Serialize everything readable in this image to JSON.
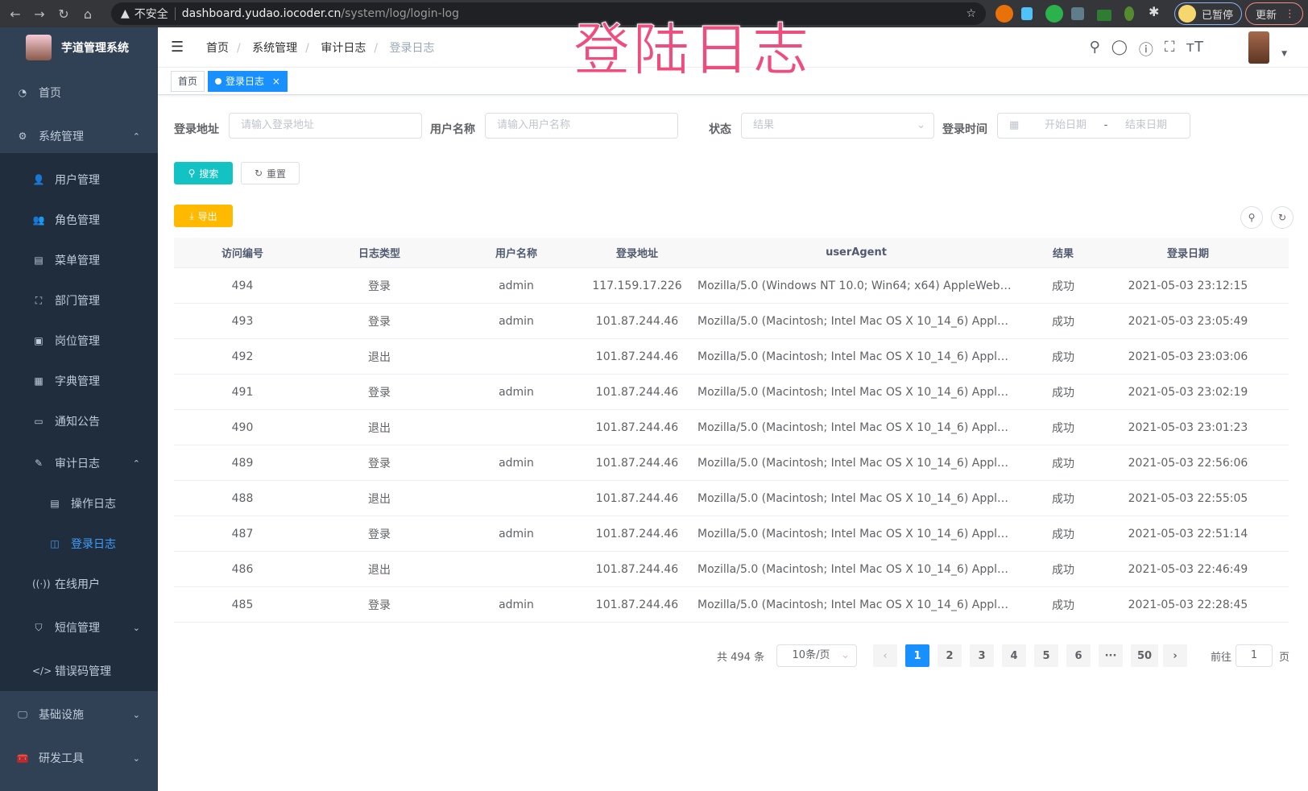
{
  "browser": {
    "warning": "不安全",
    "host": "dashboard.yudao.iocoder.cn",
    "path": "/system/log/login-log",
    "profile_label": "已暂停",
    "update_label": "更新"
  },
  "overlay_title": "登陆日志",
  "sidebar": {
    "title": "芋道管理系统",
    "items": [
      {
        "label": "首页",
        "icon": "dashboard-icon",
        "glyph": "◔",
        "level": 0,
        "top": 56
      },
      {
        "label": "系统管理",
        "icon": "gear-icon",
        "glyph": "⚙",
        "level": 0,
        "top": 110,
        "arrow": "⌃"
      },
      {
        "label": "用户管理",
        "icon": "user-icon",
        "glyph": "👤",
        "level": 1,
        "top": 164
      },
      {
        "label": "角色管理",
        "icon": "role-icon",
        "glyph": "👥",
        "level": 1,
        "top": 214
      },
      {
        "label": "菜单管理",
        "icon": "menu-tree-icon",
        "glyph": "▤",
        "level": 1,
        "top": 264
      },
      {
        "label": "部门管理",
        "icon": "org-tree-icon",
        "glyph": "⛶",
        "level": 1,
        "top": 314
      },
      {
        "label": "岗位管理",
        "icon": "post-icon",
        "glyph": "▣",
        "level": 1,
        "top": 364
      },
      {
        "label": "字典管理",
        "icon": "dict-icon",
        "glyph": "▦",
        "level": 1,
        "top": 414
      },
      {
        "label": "通知公告",
        "icon": "message-icon",
        "glyph": "▭",
        "level": 1,
        "top": 464
      },
      {
        "label": "审计日志",
        "icon": "log-icon",
        "glyph": "✎",
        "level": 1,
        "top": 516,
        "arrow": "⌃"
      },
      {
        "label": "操作日志",
        "icon": "form-icon",
        "glyph": "▤",
        "level": 2,
        "top": 566
      },
      {
        "label": "登录日志",
        "icon": "logininfor-icon",
        "glyph": "◫",
        "level": 2,
        "top": 616,
        "active": true
      },
      {
        "label": "在线用户",
        "icon": "online-icon",
        "glyph": "((·))",
        "level": 1,
        "top": 666
      },
      {
        "label": "短信管理",
        "icon": "shield-icon",
        "glyph": "⛉",
        "level": 1,
        "top": 720,
        "arrow": "⌄"
      },
      {
        "label": "错误码管理",
        "icon": "code-icon",
        "glyph": "</>",
        "level": 1,
        "top": 774
      },
      {
        "label": "基础设施",
        "icon": "monitor-icon",
        "glyph": "🖵",
        "level": 0,
        "top": 828,
        "arrow": "⌄"
      },
      {
        "label": "研发工具",
        "icon": "toolbox-icon",
        "glyph": "🧰",
        "level": 0,
        "top": 882,
        "arrow": "⌄"
      }
    ]
  },
  "breadcrumb": [
    "首页",
    "系统管理",
    "审计日志",
    "登录日志"
  ],
  "tags": {
    "home": "首页",
    "current": "登录日志",
    "close": "×"
  },
  "filters": {
    "ip_label": "登录地址",
    "ip_placeholder": "请输入登录地址",
    "user_label": "用户名称",
    "user_placeholder": "请输入用户名称",
    "status_label": "状态",
    "status_placeholder": "结果",
    "time_label": "登录时间",
    "start_placeholder": "开始日期",
    "range_sep": "-",
    "end_placeholder": "结束日期"
  },
  "buttons": {
    "search": "搜索",
    "reset": "重置",
    "export": "导出"
  },
  "colors": {
    "search": "#13c2c2",
    "export": "#ffba00",
    "primary": "#1890ff",
    "sidebar": "#304156"
  },
  "table": {
    "headers": [
      "访问编号",
      "日志类型",
      "用户名称",
      "登录地址",
      "userAgent",
      "结果",
      "登录日期"
    ],
    "rows": [
      [
        "494",
        "登录",
        "admin",
        "117.159.17.226",
        "Mozilla/5.0 (Windows NT 10.0; Win64; x64) AppleWebKit...",
        "成功",
        "2021-05-03 23:12:15"
      ],
      [
        "493",
        "登录",
        "admin",
        "101.87.244.46",
        "Mozilla/5.0 (Macintosh; Intel Mac OS X 10_14_6) AppleWe...",
        "成功",
        "2021-05-03 23:05:49"
      ],
      [
        "492",
        "退出",
        "",
        "101.87.244.46",
        "Mozilla/5.0 (Macintosh; Intel Mac OS X 10_14_6) AppleWe...",
        "成功",
        "2021-05-03 23:03:06"
      ],
      [
        "491",
        "登录",
        "admin",
        "101.87.244.46",
        "Mozilla/5.0 (Macintosh; Intel Mac OS X 10_14_6) AppleWe...",
        "成功",
        "2021-05-03 23:02:19"
      ],
      [
        "490",
        "退出",
        "",
        "101.87.244.46",
        "Mozilla/5.0 (Macintosh; Intel Mac OS X 10_14_6) AppleWe...",
        "成功",
        "2021-05-03 23:01:23"
      ],
      [
        "489",
        "登录",
        "admin",
        "101.87.244.46",
        "Mozilla/5.0 (Macintosh; Intel Mac OS X 10_14_6) AppleWe...",
        "成功",
        "2021-05-03 22:56:06"
      ],
      [
        "488",
        "退出",
        "",
        "101.87.244.46",
        "Mozilla/5.0 (Macintosh; Intel Mac OS X 10_14_6) AppleWe...",
        "成功",
        "2021-05-03 22:55:05"
      ],
      [
        "487",
        "登录",
        "admin",
        "101.87.244.46",
        "Mozilla/5.0 (Macintosh; Intel Mac OS X 10_14_6) AppleWe...",
        "成功",
        "2021-05-03 22:51:14"
      ],
      [
        "486",
        "退出",
        "",
        "101.87.244.46",
        "Mozilla/5.0 (Macintosh; Intel Mac OS X 10_14_6) AppleWe...",
        "成功",
        "2021-05-03 22:46:49"
      ],
      [
        "485",
        "登录",
        "admin",
        "101.87.244.46",
        "Mozilla/5.0 (Macintosh; Intel Mac OS X 10_14_6) AppleWe...",
        "成功",
        "2021-05-03 22:28:45"
      ]
    ]
  },
  "pagination": {
    "total": "共 494 条",
    "page_size": "10条/页",
    "pages": [
      "1",
      "2",
      "3",
      "4",
      "5",
      "6",
      "···",
      "50"
    ],
    "current": "1",
    "prev": "‹",
    "next": "›",
    "goto_label": "前往",
    "goto_value": "1",
    "goto_suffix": "页"
  }
}
